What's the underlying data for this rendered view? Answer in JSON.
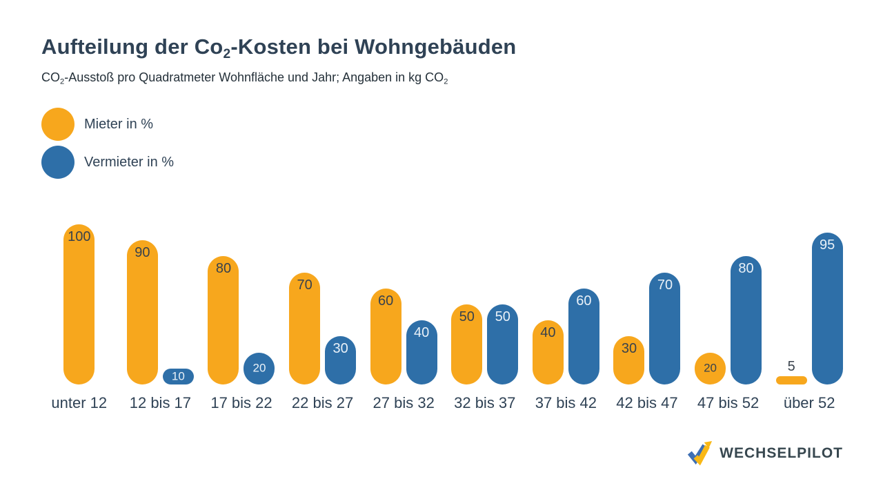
{
  "header": {
    "title": {
      "pre": "Aufteilung der Co",
      "sub": "2",
      "post": "-Kosten bei Wohngebäuden"
    },
    "subtitle": {
      "pre": "CO",
      "sub1": "2",
      "mid": "-Ausstoß pro Quadratmeter Wohnfläche und Jahr; Angaben in kg CO",
      "sub2": "2"
    }
  },
  "chart_data": {
    "type": "bar",
    "title": "Aufteilung der Co2-Kosten bei Wohngebäuden",
    "subtitle": "CO2-Ausstoß pro Quadratmeter Wohnfläche und Jahr; Angaben in kg CO2",
    "categories": [
      "unter 12",
      "12 bis 17",
      "17 bis 22",
      "22 bis 27",
      "27 bis 32",
      "32 bis 37",
      "37 bis 42",
      "42 bis 47",
      "47 bis 52",
      "über 52"
    ],
    "series": [
      {
        "name": "Mieter in %",
        "color": "#F7A71D",
        "values": [
          100,
          90,
          80,
          70,
          60,
          50,
          40,
          30,
          20,
          5
        ]
      },
      {
        "name": "Vermieter in %",
        "color": "#2E6FA8",
        "values": [
          0,
          10,
          20,
          30,
          40,
          50,
          60,
          70,
          80,
          95
        ]
      }
    ],
    "ylim": [
      0,
      100
    ],
    "grid": false,
    "axes_shown": false,
    "value_labels": true,
    "legend_position": "top-left"
  },
  "footer": {
    "logo_text": "WECHSELPILOT",
    "logo_colors": {
      "blue": "#3E6FB3",
      "yellow": "#F9B815"
    }
  },
  "colors": {
    "background": "#FFFFFF",
    "mieter_orange": "#F7A71D",
    "vermieter_blue": "#2E6FA8",
    "text_dark": "#2F4255",
    "value_label_on_orange": "#39424C",
    "value_label_on_blue": "#E9F1F8"
  }
}
